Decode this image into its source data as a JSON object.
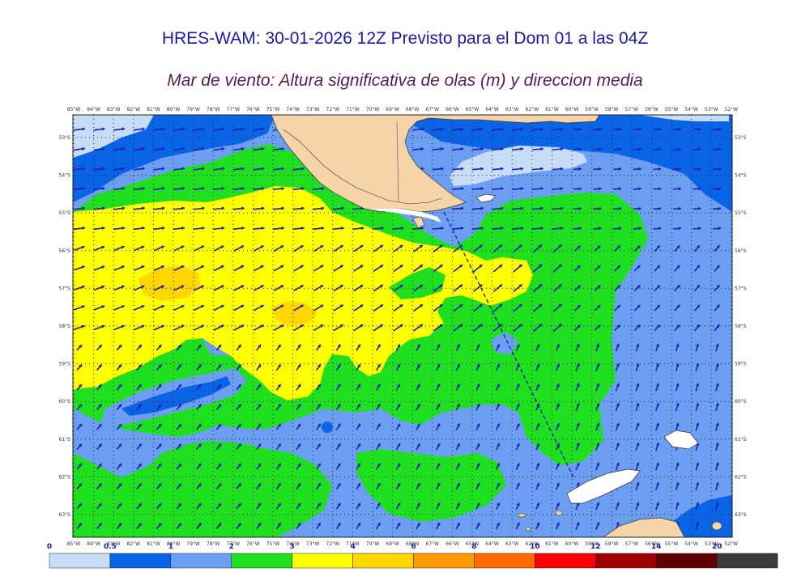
{
  "header": {
    "title": "HRES-WAM: 30-01-2026 12Z Previsto para el Dom 01 a las 04Z",
    "subtitle": "Mar de viento: Altura significativa de olas (m) y direccion media"
  },
  "map": {
    "lon_labels": [
      "85°W",
      "84°W",
      "83°W",
      "82°W",
      "81°W",
      "80°W",
      "79°W",
      "78°W",
      "77°W",
      "76°W",
      "75°W",
      "74°W",
      "73°W",
      "72°W",
      "71°W",
      "70°W",
      "69°W",
      "68°W",
      "67°W",
      "66°W",
      "65°W",
      "64°W",
      "63°W",
      "62°W",
      "61°W",
      "60°W",
      "59°W",
      "58°W",
      "57°W",
      "56°W",
      "55°W",
      "54°W",
      "53°W",
      "52°W"
    ],
    "lat_labels": [
      "53°S",
      "54°S",
      "55°S",
      "56°S",
      "57°S",
      "58°S",
      "59°S",
      "60°S",
      "61°S",
      "62°S",
      "63°S"
    ]
  },
  "colorbar": {
    "ticks": [
      "0",
      "0.5",
      "1",
      "2",
      "3",
      "4",
      "6",
      "8",
      "10",
      "12",
      "14",
      "20"
    ],
    "colors": [
      "#c6dcf7",
      "#0a64e6",
      "#6c9ff2",
      "#1ee01e",
      "#ffff00",
      "#ffd700",
      "#ff9b00",
      "#ff6a00",
      "#ff0000",
      "#9e0000",
      "#5e0000",
      "#3a3a3a"
    ]
  },
  "colors": {
    "land": "#f5d4a8",
    "coast": "#333333",
    "arrow": "#1e1eb4",
    "grid": "#222222"
  }
}
